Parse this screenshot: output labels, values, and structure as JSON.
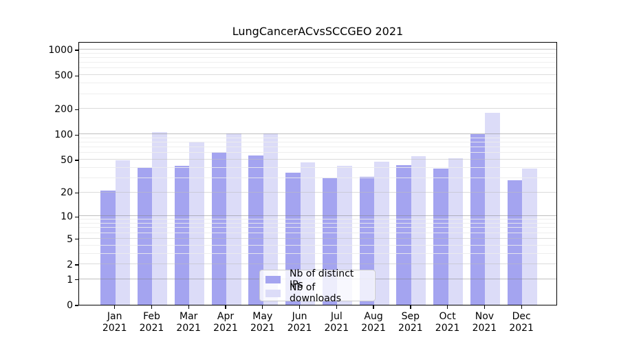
{
  "chart_data": {
    "type": "bar",
    "title": "LungCancerACvsSCCGEO 2021",
    "year": "2021",
    "categories": [
      "Jan",
      "Feb",
      "Mar",
      "Apr",
      "May",
      "Jun",
      "Jul",
      "Aug",
      "Sep",
      "Oct",
      "Nov",
      "Dec"
    ],
    "series": [
      {
        "name": "Nb of distinct IPs",
        "color": "#a4a4f0",
        "values": [
          21,
          40,
          42,
          62,
          56,
          35,
          30,
          31,
          43,
          39,
          100,
          28
        ]
      },
      {
        "name": "Nb of downloads",
        "color": "#dcdcf8",
        "values": [
          49,
          106,
          81,
          102,
          102,
          46,
          42,
          47,
          55,
          52,
          180,
          39
        ]
      }
    ],
    "y_axis": {
      "scale": "log1p",
      "max": 1250,
      "ticks": [
        0,
        1,
        2,
        5,
        10,
        20,
        50,
        100,
        200,
        500,
        1000
      ],
      "major_gridlines": [
        1,
        10,
        100,
        1000
      ],
      "mid_gridlines": [
        2,
        5,
        20,
        50,
        200,
        500
      ],
      "minor_gridlines": [
        3,
        4,
        6,
        7,
        8,
        9,
        30,
        40,
        60,
        70,
        80,
        90,
        300,
        400,
        600,
        700,
        800,
        900
      ]
    },
    "legend": {
      "position": "inside-bottom-center"
    },
    "grid": true
  },
  "colors": {
    "bar_ips": "#a4a4f0",
    "bar_downloads": "#dcdcf8",
    "grid_major": "rgba(128,128,128,0.5)",
    "grid_mid": "rgba(190,190,190,0.55)",
    "grid_minor": "rgba(236,236,236,0.9)",
    "axis": "#000000",
    "legend_border": "#cccccc"
  }
}
